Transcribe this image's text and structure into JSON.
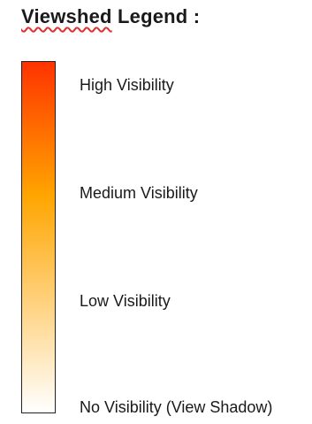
{
  "legend": {
    "title_word": "Viewshed",
    "title_rest": " Legend :",
    "gradient_colors": {
      "top": "#ff3300",
      "middle": "#ffa500",
      "bottom": "#ffffff"
    },
    "labels": {
      "high": "High Visibility",
      "medium": "Medium Visibility",
      "low": "Low Visibility",
      "none": "No Visibility (View Shadow)"
    }
  }
}
